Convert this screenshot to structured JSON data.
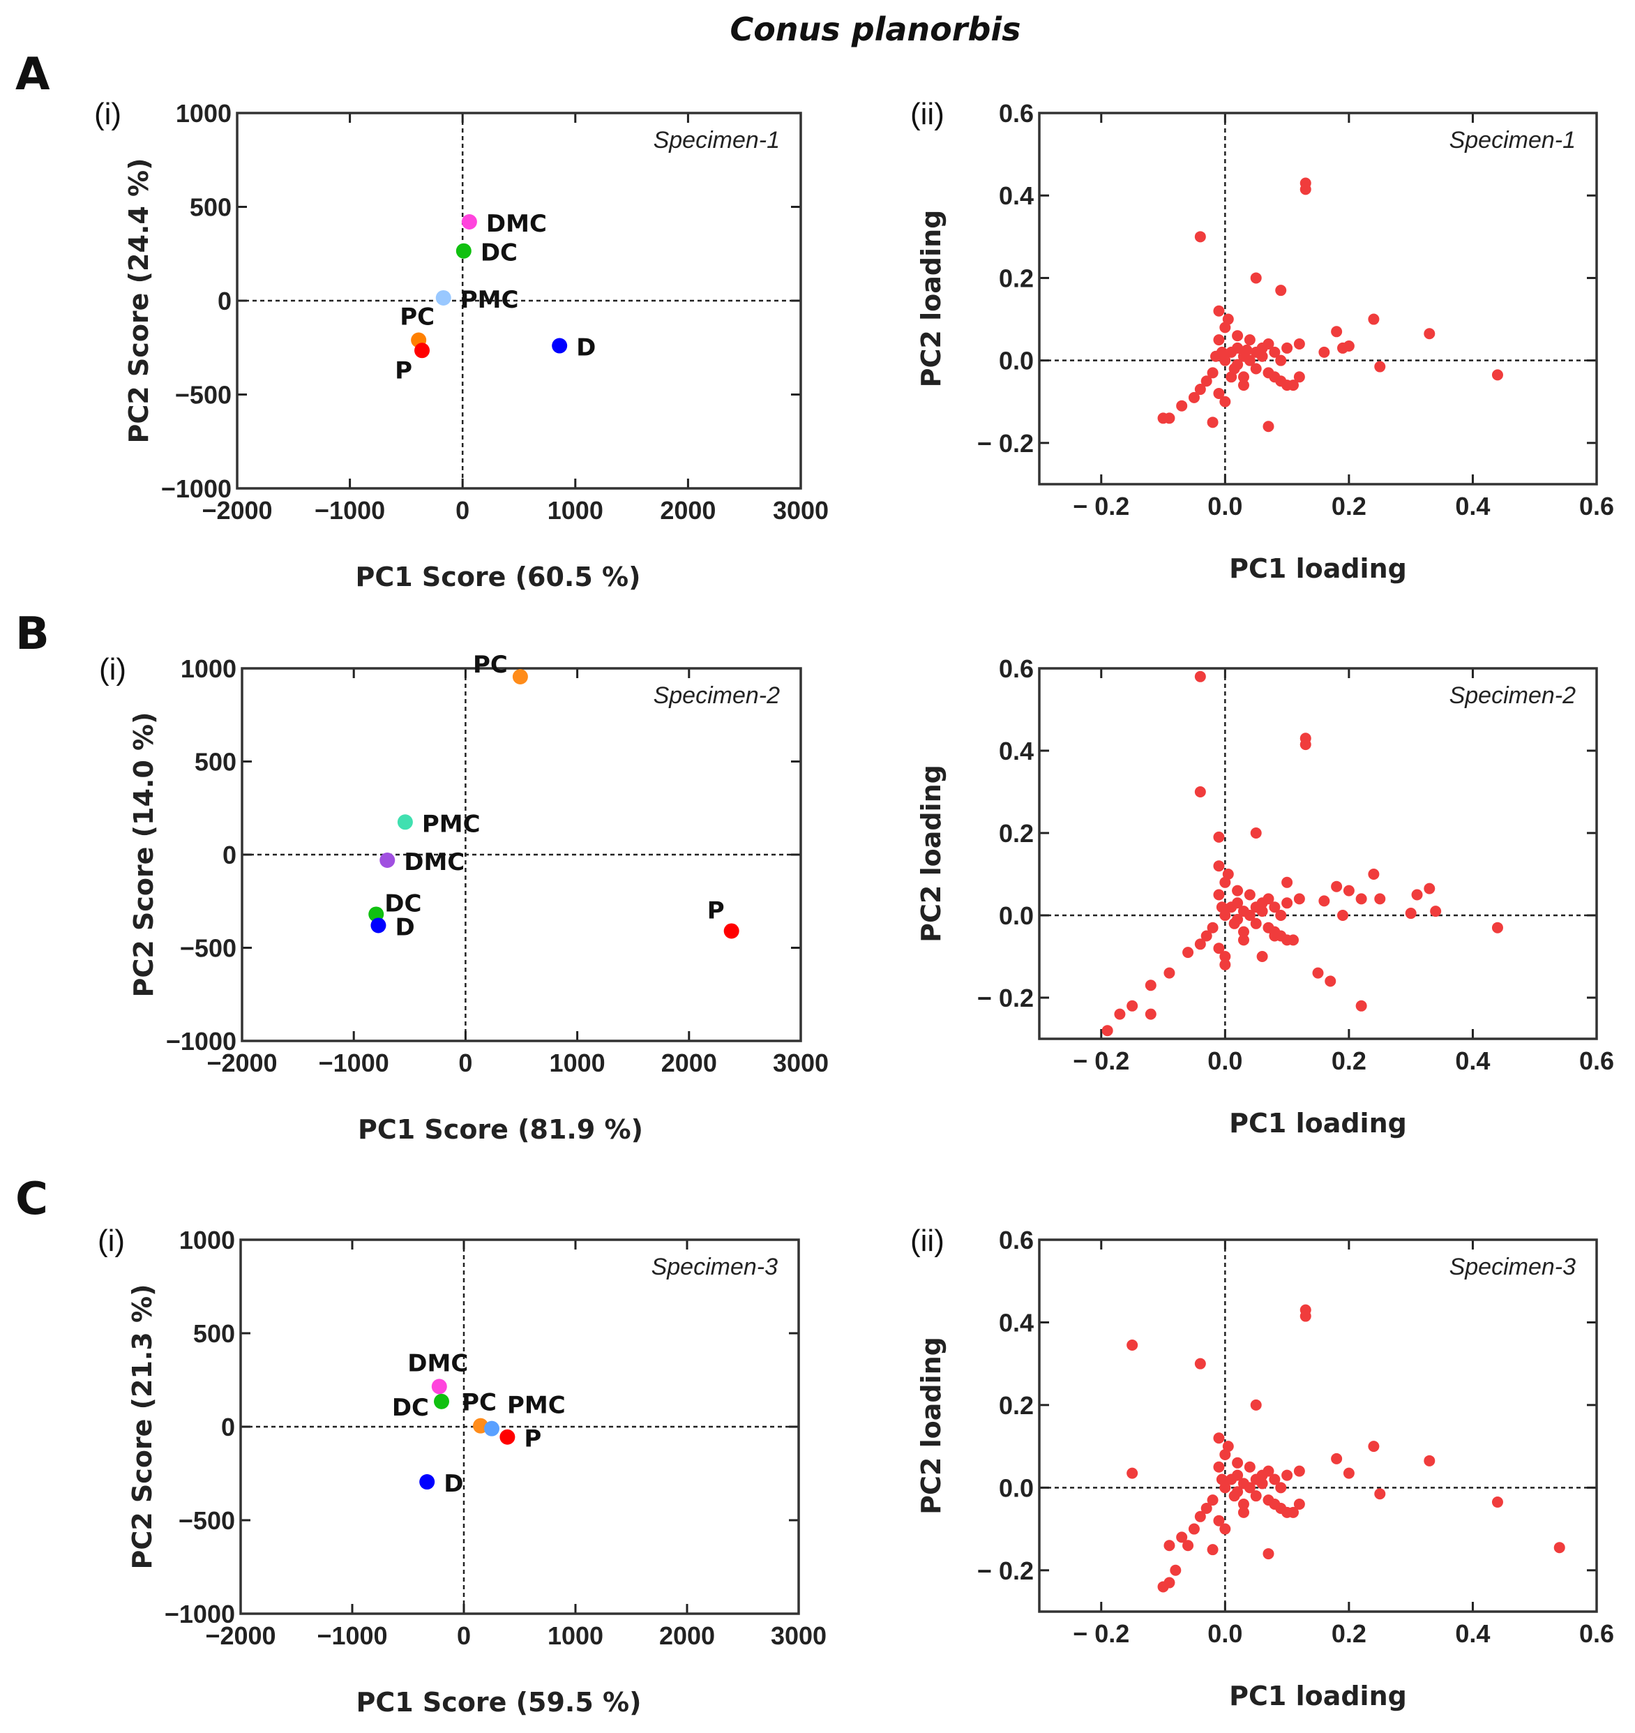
{
  "figure_title": "Conus planorbis",
  "panel_letters": [
    "A",
    "B",
    "C"
  ],
  "sub_labels": {
    "i": "(i)",
    "ii": "(ii)"
  },
  "chart_data": [
    {
      "type": "scatter",
      "id": "A-i",
      "panel": "A",
      "sub": "(i)",
      "annotation": "Specimen-1",
      "xlabel": "PC1 Score (60.5 %)",
      "ylabel": "PC2 Score (24.4 %)",
      "xlim": [
        -2000,
        3000
      ],
      "ylim": [
        -1000,
        1000
      ],
      "xticks": [
        -2000,
        -1000,
        0,
        1000,
        2000,
        3000
      ],
      "xtick_labels": [
        "−2000",
        "−1000",
        "0",
        "1000",
        "2000",
        "3000"
      ],
      "yticks": [
        -1000,
        -500,
        0,
        500,
        1000
      ],
      "ytick_labels": [
        "−1000",
        "−500",
        "0",
        "500",
        "1000"
      ],
      "points": [
        {
          "label": "DMC",
          "x": 60,
          "y": 420,
          "color": "#ff44dd",
          "label_side": "right"
        },
        {
          "label": "DC",
          "x": 10,
          "y": 265,
          "color": "#10c010",
          "label_side": "right"
        },
        {
          "label": "PMC",
          "x": -170,
          "y": 15,
          "color": "#99c8ff",
          "label_side": "right"
        },
        {
          "label": "PC",
          "x": -390,
          "y": -210,
          "color": "#ff8000",
          "label_side": "above"
        },
        {
          "label": "P",
          "x": -360,
          "y": -265,
          "color": "#ff0000",
          "label_side": "below-left"
        },
        {
          "label": "D",
          "x": 860,
          "y": -240,
          "color": "#0000ff",
          "label_side": "right"
        }
      ]
    },
    {
      "type": "scatter",
      "id": "A-ii",
      "panel": "A",
      "sub": "(ii)",
      "annotation": "Specimen-1",
      "xlabel": "PC1 loading",
      "ylabel": "PC2 loading",
      "xlim": [
        -0.3,
        0.6
      ],
      "ylim": [
        -0.3,
        0.6
      ],
      "xticks": [
        -0.2,
        0,
        0.2,
        0.4,
        0.6
      ],
      "xtick_labels": [
        "− 0.2",
        "0.0",
        "0.2",
        "0.4",
        "0.6"
      ],
      "yticks": [
        -0.2,
        0,
        0.2,
        0.4,
        0.6
      ],
      "ytick_labels": [
        "− 0.2",
        "0.0",
        "0.2",
        "0.4",
        "0.6"
      ],
      "color": "#f03c3c",
      "points": [
        [
          0.13,
          0.43
        ],
        [
          0.13,
          0.415
        ],
        [
          -0.04,
          0.3
        ],
        [
          0.05,
          0.2
        ],
        [
          0.09,
          0.17
        ],
        [
          0.24,
          0.1
        ],
        [
          0.33,
          0.065
        ],
        [
          0.18,
          0.07
        ],
        [
          0.44,
          -0.035
        ],
        [
          0.25,
          -0.015
        ],
        [
          0.2,
          0.035
        ],
        [
          0.19,
          0.03
        ],
        [
          0.16,
          0.02
        ],
        [
          -0.1,
          -0.14
        ],
        [
          -0.09,
          -0.14
        ],
        [
          -0.02,
          -0.15
        ],
        [
          0.07,
          -0.16
        ],
        [
          0.12,
          -0.04
        ],
        [
          -0.07,
          -0.11
        ],
        [
          -0.05,
          -0.09
        ],
        [
          0,
          0
        ],
        [
          0.01,
          0.02
        ],
        [
          0.02,
          -0.01
        ],
        [
          0.03,
          0.01
        ],
        [
          0.04,
          0
        ],
        [
          0.05,
          -0.02
        ],
        [
          0.06,
          0.01
        ],
        [
          0.07,
          -0.03
        ],
        [
          0.08,
          -0.04
        ],
        [
          0.09,
          -0.05
        ],
        [
          0.1,
          -0.06
        ],
        [
          0.11,
          -0.06
        ],
        [
          0.06,
          0.03
        ],
        [
          0.08,
          0.02
        ],
        [
          0.1,
          0.03
        ],
        [
          0.12,
          0.04
        ],
        [
          -0.01,
          0.05
        ],
        [
          0,
          0.08
        ],
        [
          -0.01,
          0.12
        ],
        [
          0.005,
          0.1
        ],
        [
          0.02,
          0.06
        ],
        [
          -0.02,
          -0.03
        ],
        [
          -0.03,
          -0.05
        ],
        [
          -0.04,
          -0.07
        ],
        [
          -0.01,
          -0.08
        ],
        [
          0,
          -0.1
        ],
        [
          0.03,
          -0.04
        ],
        [
          0.04,
          0.05
        ],
        [
          0.02,
          0.03
        ],
        [
          0.05,
          0.02
        ],
        [
          0.015,
          -0.02
        ],
        [
          -0.005,
          0.02
        ],
        [
          0.03,
          -0.06
        ],
        [
          0.09,
          0
        ],
        [
          0.07,
          0.04
        ],
        [
          0.01,
          -0.04
        ],
        [
          -0.015,
          0.01
        ],
        [
          0.035,
          0.025
        ]
      ]
    },
    {
      "type": "scatter",
      "id": "B-i",
      "panel": "B",
      "sub": "(i)",
      "annotation": "Specimen-2",
      "xlabel": "PC1 Score (81.9 %)",
      "ylabel": "PC2 Score (14.0 %)",
      "xlim": [
        -2000,
        3000
      ],
      "ylim": [
        -1000,
        1000
      ],
      "xticks": [
        -2000,
        -1000,
        0,
        1000,
        2000,
        3000
      ],
      "xtick_labels": [
        "−2000",
        "−1000",
        "0",
        "1000",
        "2000",
        "3000"
      ],
      "yticks": [
        -1000,
        -500,
        0,
        500,
        1000
      ],
      "ytick_labels": [
        "−1000",
        "−500",
        "0",
        "500",
        "1000"
      ],
      "points": [
        {
          "label": "PC",
          "x": 490,
          "y": 955,
          "color": "#ff8c1a",
          "label_side": "left"
        },
        {
          "label": "PMC",
          "x": -540,
          "y": 175,
          "color": "#40e0b0",
          "label_side": "right"
        },
        {
          "label": "DMC",
          "x": -700,
          "y": -30,
          "color": "#a050e0",
          "label_side": "right"
        },
        {
          "label": "DC",
          "x": -800,
          "y": -320,
          "color": "#10c010",
          "label_side": "right-up"
        },
        {
          "label": "D",
          "x": -780,
          "y": -380,
          "color": "#0000ff",
          "label_side": "right"
        },
        {
          "label": "P",
          "x": 2380,
          "y": -410,
          "color": "#ff0000",
          "label_side": "above-left"
        }
      ]
    },
    {
      "type": "scatter",
      "id": "B-ii",
      "panel": "B",
      "sub": "",
      "annotation": "Specimen-2",
      "xlabel": "PC1 loading",
      "ylabel": "PC2 loading",
      "xlim": [
        -0.3,
        0.6
      ],
      "ylim": [
        -0.3,
        0.6
      ],
      "xticks": [
        -0.2,
        0,
        0.2,
        0.4,
        0.6
      ],
      "xtick_labels": [
        "− 0.2",
        "0.0",
        "0.2",
        "0.4",
        "0.6"
      ],
      "yticks": [
        -0.2,
        0,
        0.2,
        0.4,
        0.6
      ],
      "ytick_labels": [
        "− 0.2",
        "0.0",
        "0.2",
        "0.4",
        "0.6"
      ],
      "color": "#f03c3c",
      "points": [
        [
          -0.04,
          0.58
        ],
        [
          0.13,
          0.43
        ],
        [
          0.13,
          0.415
        ],
        [
          -0.04,
          0.3
        ],
        [
          -0.01,
          0.19
        ],
        [
          0.05,
          0.2
        ],
        [
          0.24,
          0.1
        ],
        [
          0.18,
          0.07
        ],
        [
          0.31,
          0.05
        ],
        [
          0.33,
          0.065
        ],
        [
          0.34,
          0.01
        ],
        [
          0.3,
          0.005
        ],
        [
          0.44,
          -0.03
        ],
        [
          0.22,
          0.04
        ],
        [
          0.25,
          0.04
        ],
        [
          0.2,
          0.06
        ],
        [
          0.1,
          0.08
        ],
        [
          0.22,
          -0.22
        ],
        [
          0.17,
          -0.16
        ],
        [
          0.15,
          -0.14
        ],
        [
          -0.19,
          -0.28
        ],
        [
          -0.17,
          -0.24
        ],
        [
          -0.12,
          -0.24
        ],
        [
          -0.12,
          -0.17
        ],
        [
          -0.09,
          -0.14
        ],
        [
          -0.06,
          -0.09
        ],
        [
          -0.15,
          -0.22
        ],
        [
          0,
          -0.12
        ],
        [
          0.06,
          -0.1
        ],
        [
          0.08,
          -0.05
        ],
        [
          0.19,
          0.0
        ],
        [
          0.16,
          0.035
        ],
        [
          0,
          0
        ],
        [
          0.01,
          0.02
        ],
        [
          0.02,
          -0.01
        ],
        [
          0.03,
          0.01
        ],
        [
          0.04,
          0
        ],
        [
          0.05,
          -0.02
        ],
        [
          0.06,
          0.01
        ],
        [
          0.07,
          -0.03
        ],
        [
          0.08,
          -0.04
        ],
        [
          0.09,
          -0.05
        ],
        [
          0.1,
          -0.06
        ],
        [
          0.11,
          -0.06
        ],
        [
          0.06,
          0.03
        ],
        [
          0.08,
          0.02
        ],
        [
          0.1,
          0.03
        ],
        [
          0.12,
          0.04
        ],
        [
          -0.01,
          0.05
        ],
        [
          0,
          0.08
        ],
        [
          -0.01,
          0.12
        ],
        [
          0.005,
          0.1
        ],
        [
          0.02,
          0.06
        ],
        [
          -0.02,
          -0.03
        ],
        [
          -0.03,
          -0.05
        ],
        [
          -0.04,
          -0.07
        ],
        [
          -0.01,
          -0.08
        ],
        [
          0,
          -0.1
        ],
        [
          0.03,
          -0.04
        ],
        [
          0.04,
          0.05
        ],
        [
          0.02,
          0.03
        ],
        [
          0.05,
          0.02
        ],
        [
          0.015,
          -0.02
        ],
        [
          -0.005,
          0.02
        ],
        [
          0.03,
          -0.06
        ],
        [
          0.09,
          0
        ],
        [
          0.07,
          0.04
        ]
      ]
    },
    {
      "type": "scatter",
      "id": "C-i",
      "panel": "C",
      "sub": "(i)",
      "annotation": "Specimen-3",
      "xlabel": "PC1 Score (59.5 %)",
      "ylabel": "PC2 Score (21.3 %)",
      "xlim": [
        -2000,
        3000
      ],
      "ylim": [
        -1000,
        1000
      ],
      "xticks": [
        -2000,
        -1000,
        0,
        1000,
        2000,
        3000
      ],
      "xtick_labels": [
        "−2000",
        "−1000",
        "0",
        "1000",
        "2000",
        "3000"
      ],
      "yticks": [
        -1000,
        -500,
        0,
        500,
        1000
      ],
      "ytick_labels": [
        "−1000",
        "−500",
        "0",
        "500",
        "1000"
      ],
      "points": [
        {
          "label": "DMC",
          "x": -220,
          "y": 215,
          "color": "#ff44dd",
          "label_side": "above"
        },
        {
          "label": "DC",
          "x": -200,
          "y": 135,
          "color": "#10c010",
          "label_side": "left-down"
        },
        {
          "label": "PC",
          "x": 150,
          "y": 5,
          "color": "#ff8c1a",
          "label_side": "above"
        },
        {
          "label": "PMC",
          "x": 250,
          "y": -10,
          "color": "#5aa0ff",
          "label_side": "above-right"
        },
        {
          "label": "P",
          "x": 390,
          "y": -55,
          "color": "#ff0000",
          "label_side": "right"
        },
        {
          "label": "D",
          "x": -330,
          "y": -295,
          "color": "#0000ff",
          "label_side": "right"
        }
      ]
    },
    {
      "type": "scatter",
      "id": "C-ii",
      "panel": "C",
      "sub": "(ii)",
      "annotation": "Specimen-3",
      "xlabel": "PC1 loading",
      "ylabel": "PC2 loading",
      "xlim": [
        -0.3,
        0.6
      ],
      "ylim": [
        -0.3,
        0.6
      ],
      "xticks": [
        -0.2,
        0,
        0.2,
        0.4,
        0.6
      ],
      "xtick_labels": [
        "− 0.2",
        "0.0",
        "0.2",
        "0.4",
        "0.6"
      ],
      "yticks": [
        -0.2,
        0,
        0.2,
        0.4,
        0.6
      ],
      "ytick_labels": [
        "− 0.2",
        "0.0",
        "0.2",
        "0.4",
        "0.6"
      ],
      "color": "#f03c3c",
      "points": [
        [
          -0.15,
          0.345
        ],
        [
          -0.15,
          0.035
        ],
        [
          0.13,
          0.43
        ],
        [
          0.13,
          0.415
        ],
        [
          -0.04,
          0.3
        ],
        [
          0.05,
          0.2
        ],
        [
          0.24,
          0.1
        ],
        [
          0.33,
          0.065
        ],
        [
          0.18,
          0.07
        ],
        [
          0.44,
          -0.035
        ],
        [
          0.25,
          -0.015
        ],
        [
          0.54,
          -0.145
        ],
        [
          0.2,
          0.035
        ],
        [
          -0.1,
          -0.24
        ],
        [
          -0.09,
          -0.23
        ],
        [
          -0.08,
          -0.2
        ],
        [
          -0.09,
          -0.14
        ],
        [
          -0.06,
          -0.14
        ],
        [
          -0.02,
          -0.15
        ],
        [
          0.07,
          -0.16
        ],
        [
          -0.07,
          -0.12
        ],
        [
          -0.05,
          -0.1
        ],
        [
          0.12,
          -0.04
        ],
        [
          0,
          0
        ],
        [
          0.01,
          0.02
        ],
        [
          0.02,
          -0.01
        ],
        [
          0.03,
          0.01
        ],
        [
          0.04,
          0
        ],
        [
          0.05,
          -0.02
        ],
        [
          0.06,
          0.01
        ],
        [
          0.07,
          -0.03
        ],
        [
          0.08,
          -0.04
        ],
        [
          0.09,
          -0.05
        ],
        [
          0.1,
          -0.06
        ],
        [
          0.11,
          -0.06
        ],
        [
          0.06,
          0.03
        ],
        [
          0.08,
          0.02
        ],
        [
          0.1,
          0.03
        ],
        [
          0.12,
          0.04
        ],
        [
          -0.01,
          0.05
        ],
        [
          0,
          0.08
        ],
        [
          -0.01,
          0.12
        ],
        [
          0.005,
          0.1
        ],
        [
          0.02,
          0.06
        ],
        [
          -0.02,
          -0.03
        ],
        [
          -0.03,
          -0.05
        ],
        [
          -0.04,
          -0.07
        ],
        [
          -0.01,
          -0.08
        ],
        [
          0,
          -0.1
        ],
        [
          0.03,
          -0.04
        ],
        [
          0.04,
          0.05
        ],
        [
          0.02,
          0.03
        ],
        [
          0.05,
          0.02
        ],
        [
          0.015,
          -0.02
        ],
        [
          -0.005,
          0.02
        ],
        [
          0.03,
          -0.06
        ],
        [
          0.09,
          0
        ],
        [
          0.07,
          0.04
        ]
      ]
    }
  ]
}
